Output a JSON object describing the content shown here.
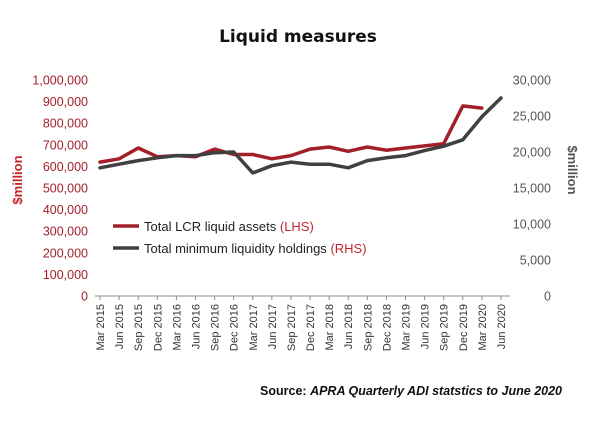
{
  "chart_data": {
    "type": "line",
    "title": "Liquid measures",
    "categories": [
      "Mar 2015",
      "Jun 2015",
      "Sep 2015",
      "Dec 2015",
      "Mar 2016",
      "Jun 2016",
      "Sep 2016",
      "Dec 2016",
      "Mar 2017",
      "Jun 2017",
      "Sep 2017",
      "Dec 2017",
      "Mar 2018",
      "Jun 2018",
      "Sep 2018",
      "Dec 2018",
      "Mar 2019",
      "Jun 2019",
      "Sep 2019",
      "Dec 2019",
      "Mar 2020",
      "Jun 2020"
    ],
    "left_axis": {
      "label": "$million",
      "ylim": [
        0,
        1000000
      ],
      "ticks": [
        "0",
        "100,000",
        "200,000",
        "300,000",
        "400,000",
        "500,000",
        "600,000",
        "700,000",
        "800,000",
        "900,000",
        "1,000,000"
      ]
    },
    "right_axis": {
      "label": "$million",
      "ylim": [
        0,
        30000
      ],
      "ticks": [
        "0",
        "5,000",
        "10,000",
        "15,000",
        "20,000",
        "25,000",
        "30,000"
      ]
    },
    "series": [
      {
        "name": "Total LCR liquid assets",
        "axis_tag": "(LHS)",
        "axis": "left",
        "color": "#a3202b",
        "values": [
          620000,
          635000,
          685000,
          645000,
          650000,
          645000,
          680000,
          655000,
          655000,
          635000,
          650000,
          680000,
          690000,
          670000,
          690000,
          675000,
          685000,
          695000,
          705000,
          880000,
          870000,
          null
        ]
      },
      {
        "name": "Total minimum liquidity holdings",
        "axis_tag": "(RHS)",
        "axis": "right",
        "color": "#404040",
        "values": [
          17800,
          18300,
          18800,
          19200,
          19500,
          19500,
          19900,
          20000,
          17100,
          18100,
          18600,
          18300,
          18300,
          17800,
          18800,
          19200,
          19500,
          20200,
          20800,
          21700,
          24900,
          27500
        ]
      }
    ],
    "grid": false,
    "legend_position": "center-left"
  },
  "source": {
    "prefix": "Source:",
    "text": "APRA  Quarterly ADI statstics to June 2020"
  }
}
